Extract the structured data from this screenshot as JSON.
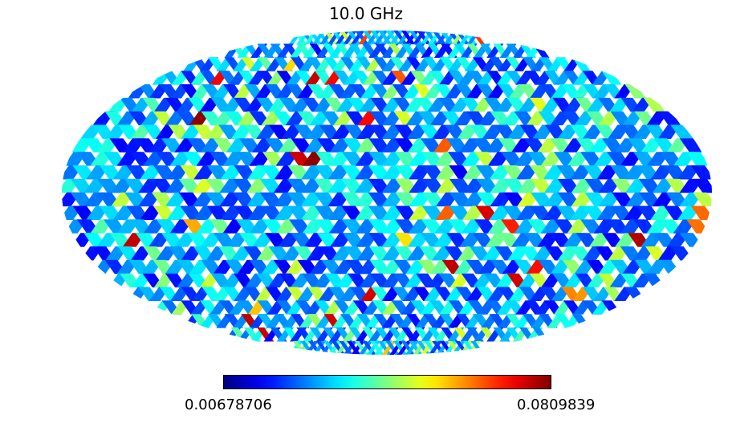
{
  "chart_data": {
    "type": "heatmap",
    "projection": "mollweide",
    "title": "10.0 GHz",
    "colormap": "jet",
    "colorbar": {
      "min_label": "0.00678706",
      "max_label": "0.0809839",
      "min": 0.00678706,
      "max": 0.0809839
    },
    "grid": false
  }
}
